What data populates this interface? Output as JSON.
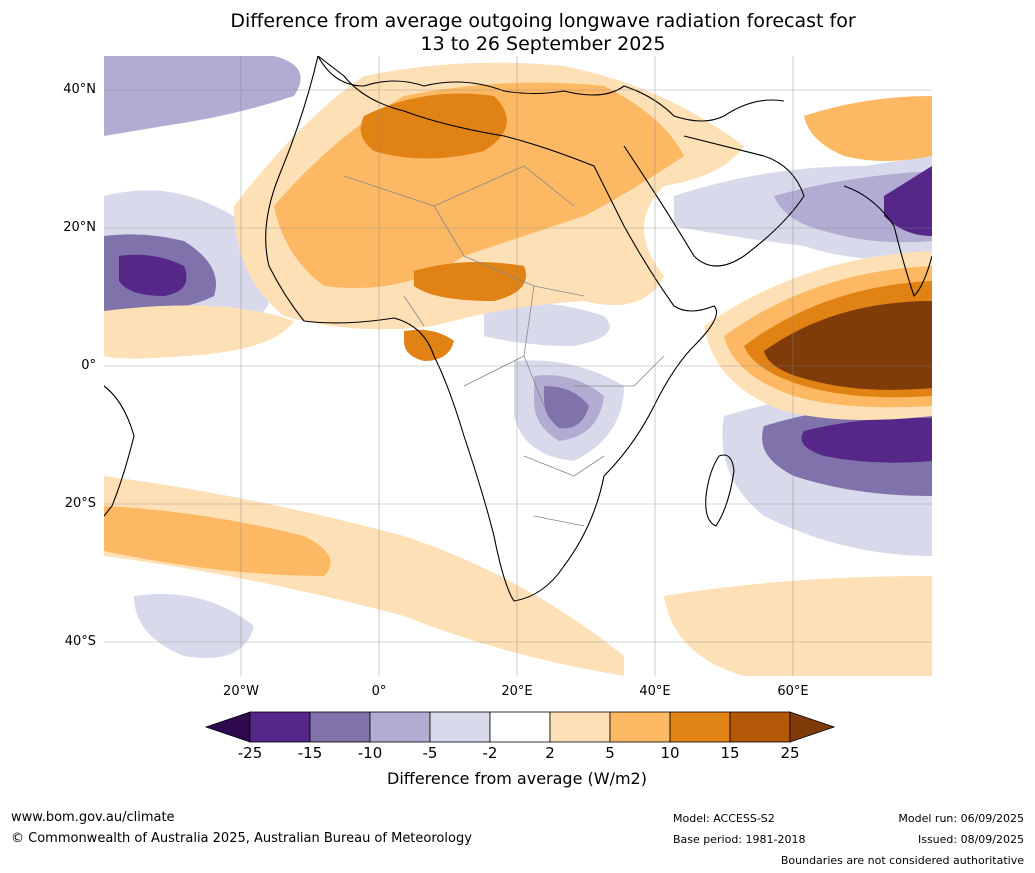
{
  "title_line1": "Difference from average outgoing longwave radiation forecast for",
  "title_line2": "13 to 26 September 2025",
  "lat_labels": [
    "40°N",
    "20°N",
    "0°",
    "20°S",
    "40°S"
  ],
  "lon_labels": [
    "20°W",
    "0°",
    "20°E",
    "40°E",
    "60°E"
  ],
  "colorbar": {
    "ticks": [
      "-25",
      "-15",
      "-10",
      "-5",
      "-2",
      "2",
      "5",
      "10",
      "15",
      "25"
    ],
    "colors": [
      "#2d0a4e",
      "#542788",
      "#8073ac",
      "#b2abd2",
      "#d8daeb",
      "#ffffff",
      "#fee0b6",
      "#fdb863",
      "#e08214",
      "#b35806",
      "#7f3b08"
    ],
    "label": "Difference from average (W/m2)"
  },
  "footer": {
    "url": "www.bom.gov.au/climate",
    "copyright": "© Commonwealth of Australia 2025, Australian Bureau of Meteorology",
    "model": "Model: ACCESS-S2",
    "base_period": "Base period: 1981-2018",
    "model_run": "Model run: 06/09/2025",
    "issued": "Issued: 08/09/2025",
    "disclaimer": "Boundaries are not considered authoritative"
  }
}
